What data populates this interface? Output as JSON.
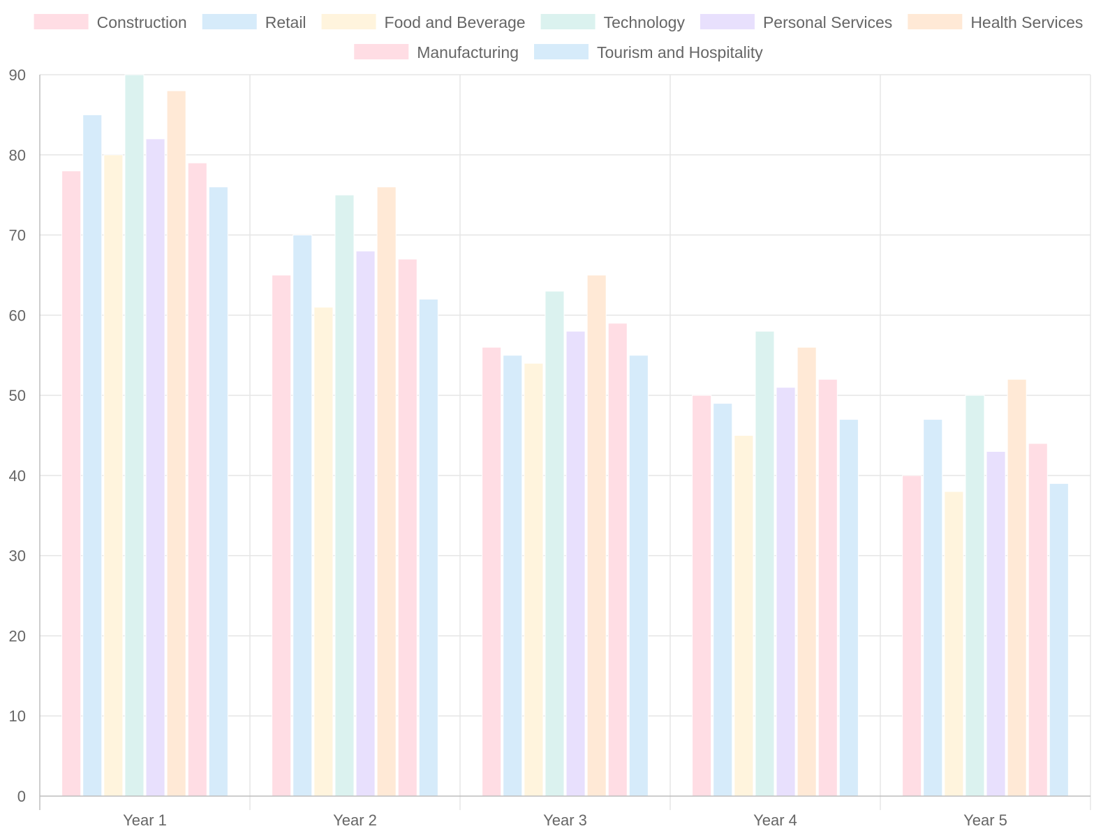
{
  "chart_data": {
    "type": "bar",
    "title": "",
    "xlabel": "",
    "ylabel": "",
    "categories": [
      "Year 1",
      "Year 2",
      "Year 3",
      "Year 4",
      "Year 5"
    ],
    "ylim": [
      0,
      90
    ],
    "yticks": [
      0,
      10,
      20,
      30,
      40,
      50,
      60,
      70,
      80,
      90
    ],
    "grid": true,
    "legend_position": "top",
    "series": [
      {
        "name": "Construction",
        "color": "#ffdde4",
        "values": [
          78,
          65,
          56,
          50,
          40
        ]
      },
      {
        "name": "Retail",
        "color": "#d6ebfa",
        "values": [
          85,
          70,
          55,
          49,
          47
        ]
      },
      {
        "name": "Food and Beverage",
        "color": "#fff4dd",
        "values": [
          80,
          61,
          54,
          45,
          38
        ]
      },
      {
        "name": "Technology",
        "color": "#dbf2ef",
        "values": [
          90,
          75,
          63,
          58,
          50
        ]
      },
      {
        "name": "Personal Services",
        "color": "#e8e0fd",
        "values": [
          82,
          68,
          58,
          51,
          43
        ]
      },
      {
        "name": "Health Services",
        "color": "#ffe9d6",
        "values": [
          88,
          76,
          65,
          56,
          52
        ]
      },
      {
        "name": "Manufacturing",
        "color": "#ffdde4",
        "values": [
          79,
          67,
          59,
          52,
          44
        ]
      },
      {
        "name": "Tourism and Hospitality",
        "color": "#d6ebfa",
        "values": [
          76,
          62,
          55,
          47,
          39
        ]
      }
    ]
  }
}
